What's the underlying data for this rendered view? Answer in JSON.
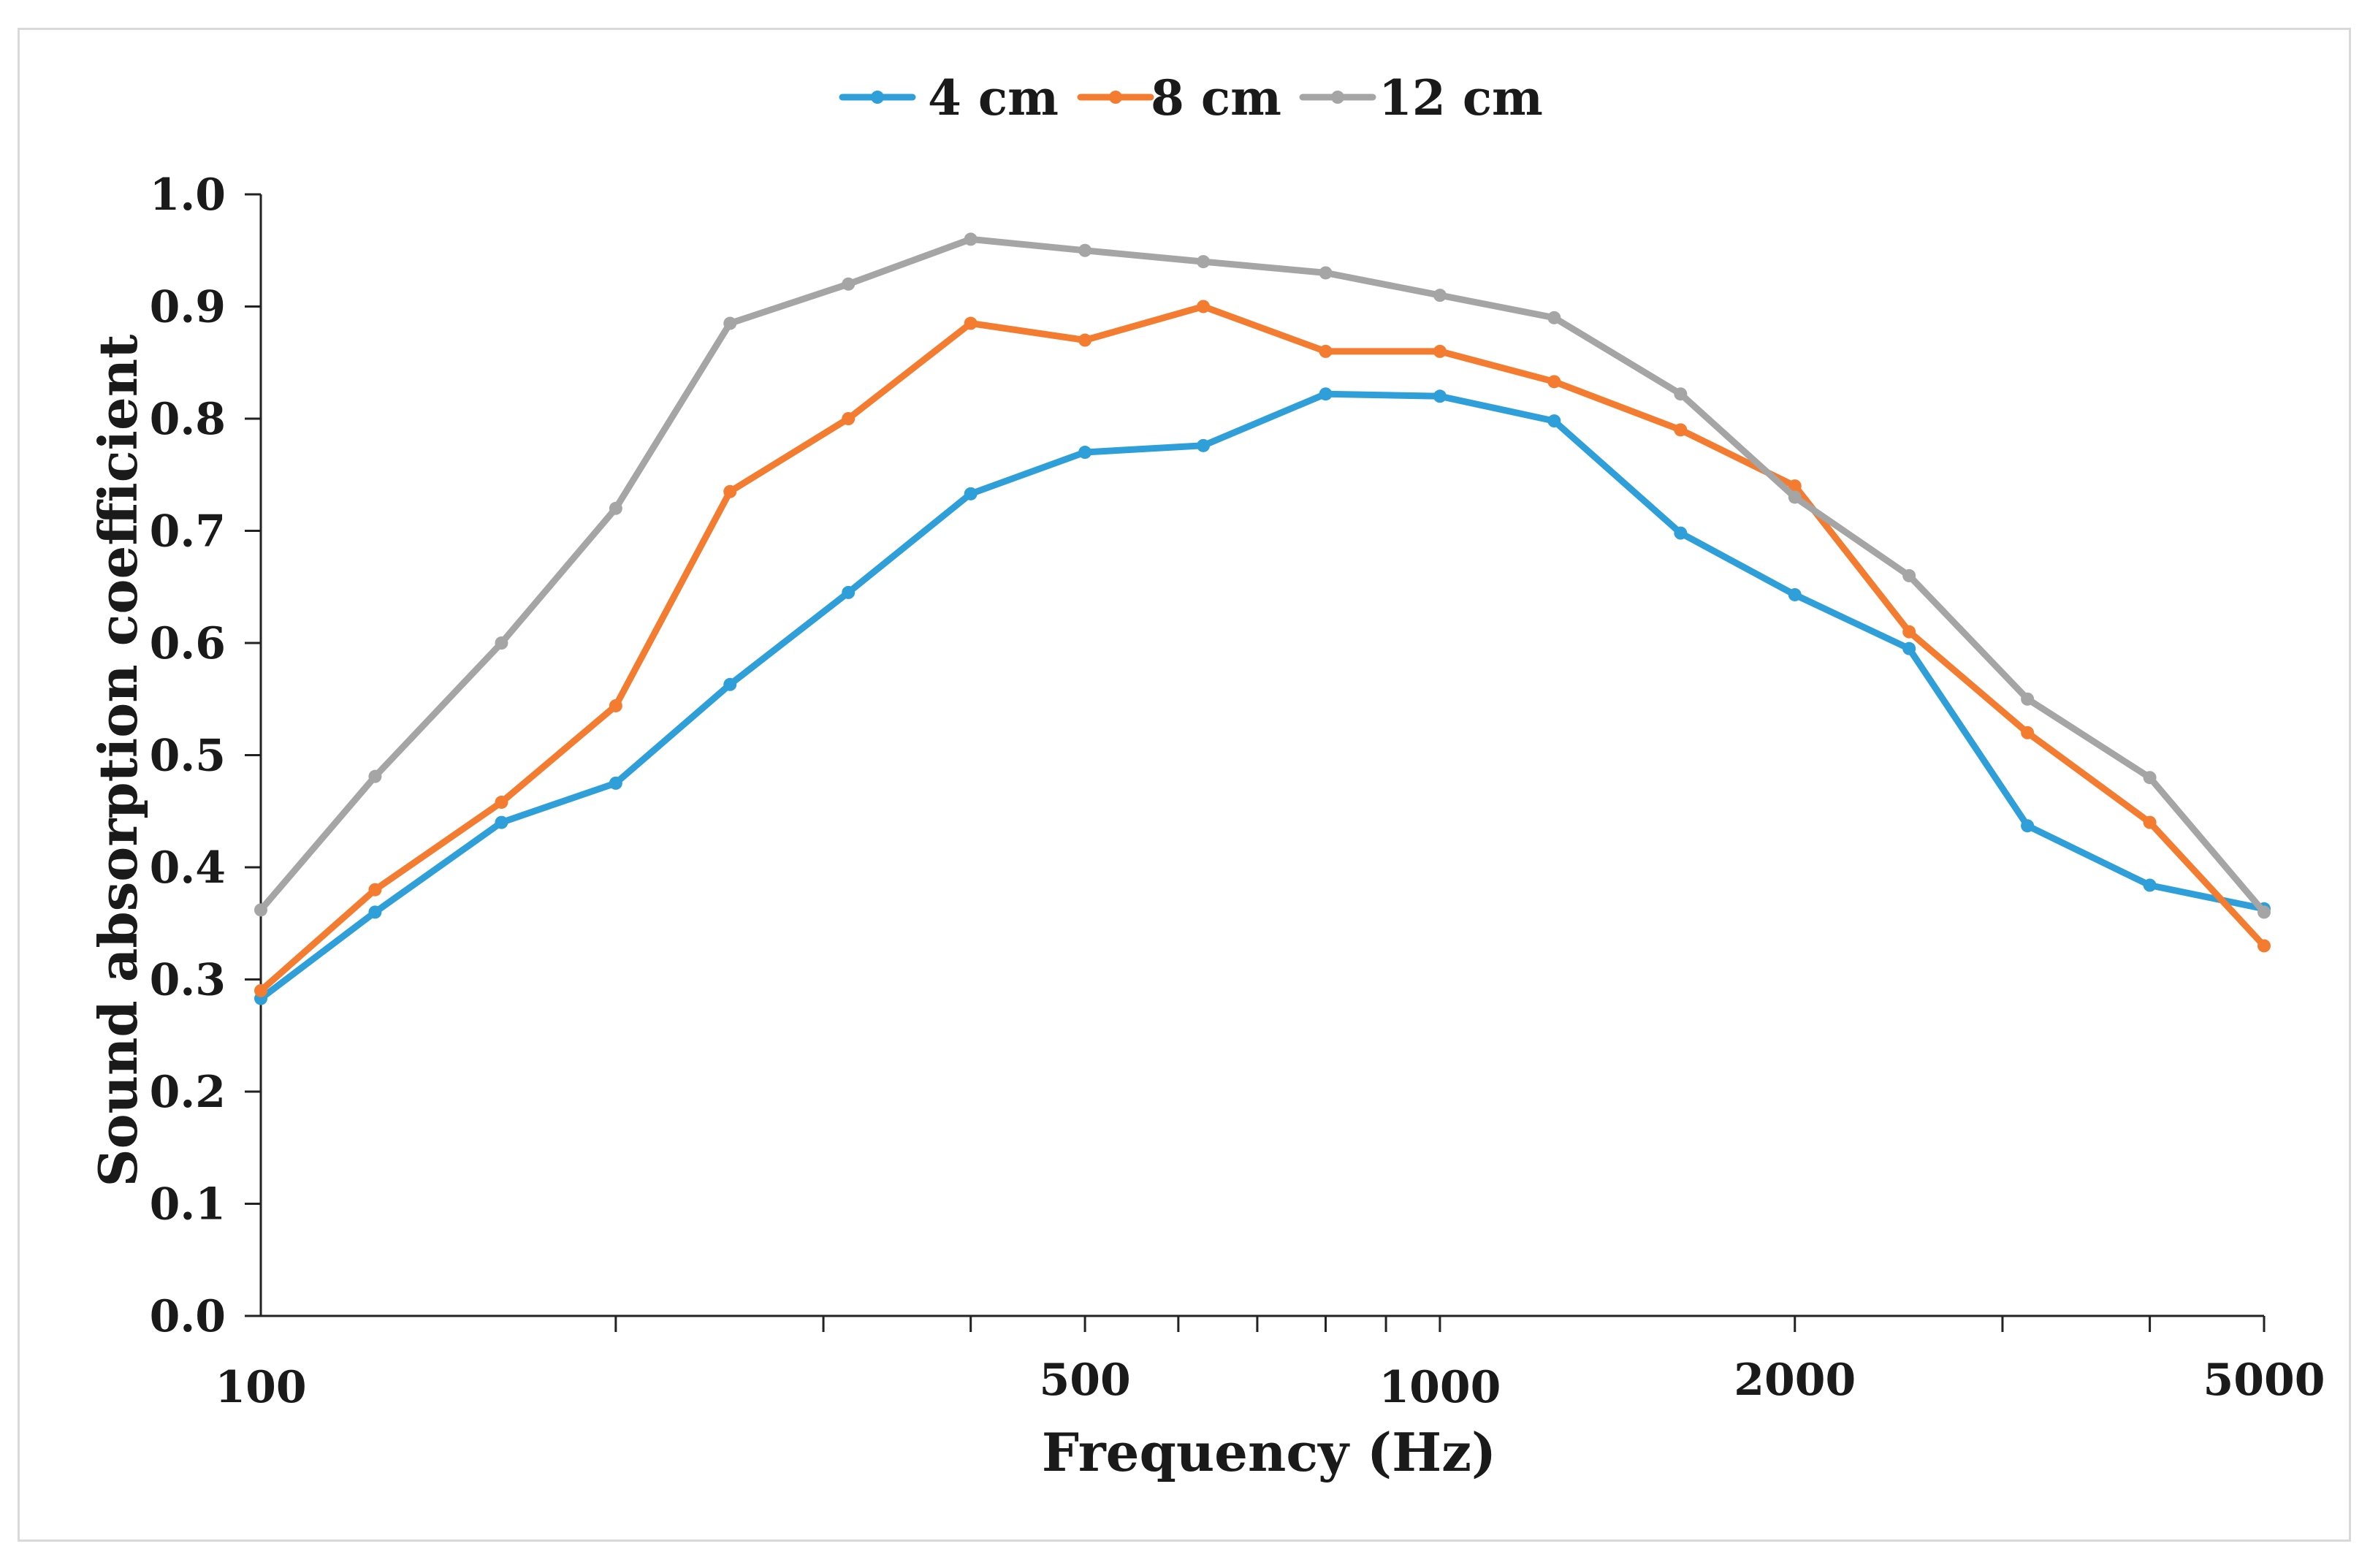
{
  "chart_data": {
    "type": "line",
    "title": "",
    "xlabel": "Frequency (Hz)",
    "ylabel": "Sound absorption coefficient",
    "xscale": "log",
    "xlim": [
      100,
      5000
    ],
    "ylim": [
      0,
      1.0
    ],
    "y_ticks": [
      "0.0",
      "0.1",
      "0.2",
      "0.3",
      "0.4",
      "0.5",
      "0.6",
      "0.7",
      "0.8",
      "0.9",
      "1.0"
    ],
    "x_tick_labels": [
      {
        "value": 100,
        "label": "100"
      },
      {
        "value": 500,
        "label": "500"
      },
      {
        "value": 1000,
        "label": "1000"
      },
      {
        "value": 2000,
        "label": "2000"
      },
      {
        "value": 5000,
        "label": "5000"
      }
    ],
    "x_minor_ticks": [
      200,
      300,
      400,
      500,
      600,
      700,
      800,
      900,
      1000,
      2000,
      3000,
      4000,
      5000
    ],
    "legend_position": "top-center",
    "x": [
      100,
      125,
      160,
      200,
      250,
      315,
      400,
      500,
      630,
      800,
      1000,
      1250,
      1600,
      2000,
      2500,
      3150,
      4000,
      5000
    ],
    "series": [
      {
        "name": "4 cm",
        "color": "#2e9fd8",
        "values": [
          0.283,
          0.36,
          0.44,
          0.475,
          0.563,
          0.645,
          0.733,
          0.77,
          0.776,
          0.822,
          0.82,
          0.798,
          0.698,
          0.643,
          0.595,
          0.437,
          0.384,
          0.363
        ]
      },
      {
        "name": "8 cm",
        "color": "#f47c30",
        "values": [
          0.29,
          0.38,
          0.458,
          0.544,
          0.735,
          0.8,
          0.885,
          0.87,
          0.9,
          0.86,
          0.86,
          0.833,
          0.79,
          0.74,
          0.61,
          0.52,
          0.44,
          0.33
        ]
      },
      {
        "name": "12 cm",
        "color": "#a5a5a5",
        "values": [
          0.362,
          0.481,
          0.6,
          0.72,
          0.885,
          0.92,
          0.96,
          0.95,
          0.94,
          0.93,
          0.91,
          0.89,
          0.822,
          0.73,
          0.66,
          0.55,
          0.48,
          0.36
        ]
      }
    ]
  }
}
